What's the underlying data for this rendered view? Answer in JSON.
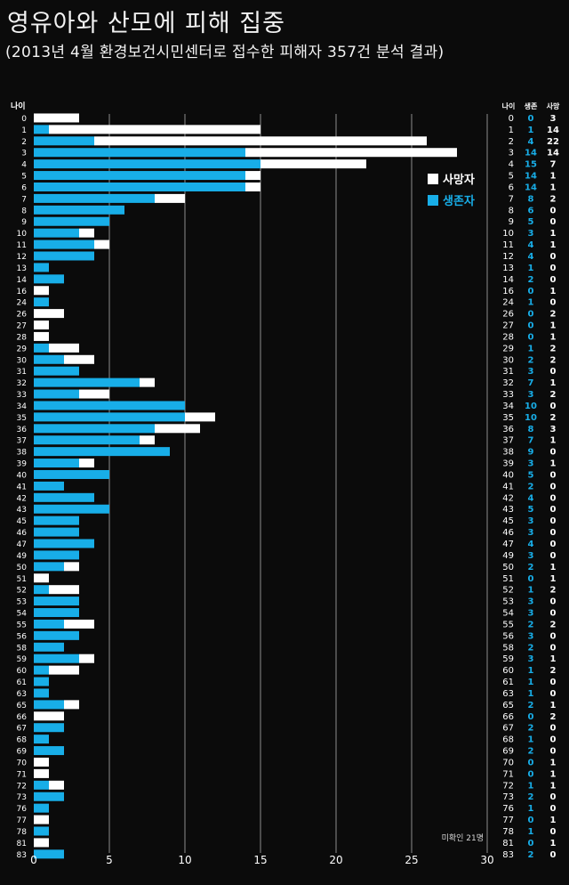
{
  "header": {
    "title": "영유아와 산모에 피해 집중",
    "subtitle": "(2013년 4월 환경보건시민센터로 접수한 피해자 357건 분석 결과)"
  },
  "colors": {
    "background": "#0b0b0b",
    "survived": "#18aee8",
    "dead": "#ffffff",
    "grid": "#8c8c8c",
    "text": "#ffffff"
  },
  "chart_data": {
    "type": "bar",
    "orientation": "horizontal",
    "stacked": true,
    "ylabel": "나이",
    "xlim": [
      0,
      30
    ],
    "xticks": [
      0,
      5,
      10,
      15,
      20,
      25,
      30
    ],
    "grid": true,
    "legend_position": "top-right",
    "note": "미확인 21명",
    "table_header": {
      "age": "나이",
      "survived": "생존",
      "dead": "사망"
    },
    "categories": [
      "0",
      "1",
      "2",
      "3",
      "4",
      "5",
      "6",
      "7",
      "8",
      "9",
      "10",
      "11",
      "12",
      "13",
      "14",
      "16",
      "24",
      "26",
      "27",
      "28",
      "29",
      "30",
      "31",
      "32",
      "33",
      "34",
      "35",
      "36",
      "37",
      "38",
      "39",
      "40",
      "41",
      "42",
      "43",
      "45",
      "46",
      "47",
      "49",
      "50",
      "51",
      "52",
      "53",
      "54",
      "55",
      "56",
      "58",
      "59",
      "60",
      "61",
      "63",
      "65",
      "66",
      "67",
      "68",
      "69",
      "70",
      "71",
      "72",
      "73",
      "76",
      "77",
      "78",
      "81",
      "83"
    ],
    "series": [
      {
        "name": "생존자",
        "color": "#18aee8",
        "values": [
          0,
          1,
          4,
          14,
          15,
          14,
          14,
          8,
          6,
          5,
          3,
          4,
          4,
          1,
          2,
          0,
          1,
          0,
          0,
          0,
          1,
          2,
          3,
          7,
          3,
          10,
          10,
          8,
          7,
          9,
          3,
          5,
          2,
          4,
          5,
          3,
          3,
          4,
          3,
          2,
          0,
          1,
          3,
          3,
          2,
          3,
          2,
          3,
          1,
          1,
          1,
          2,
          0,
          2,
          1,
          2,
          0,
          0,
          1,
          2,
          1,
          0,
          1,
          0,
          2
        ]
      },
      {
        "name": "사망자",
        "color": "#ffffff",
        "values": [
          3,
          14,
          22,
          14,
          7,
          1,
          1,
          2,
          0,
          0,
          1,
          1,
          0,
          0,
          0,
          1,
          0,
          2,
          1,
          1,
          2,
          2,
          0,
          1,
          2,
          0,
          2,
          3,
          1,
          0,
          1,
          0,
          0,
          0,
          0,
          0,
          0,
          0,
          0,
          1,
          1,
          2,
          0,
          0,
          2,
          0,
          0,
          1,
          2,
          0,
          0,
          1,
          2,
          0,
          0,
          0,
          1,
          1,
          1,
          0,
          0,
          1,
          0,
          1,
          0
        ]
      }
    ]
  }
}
